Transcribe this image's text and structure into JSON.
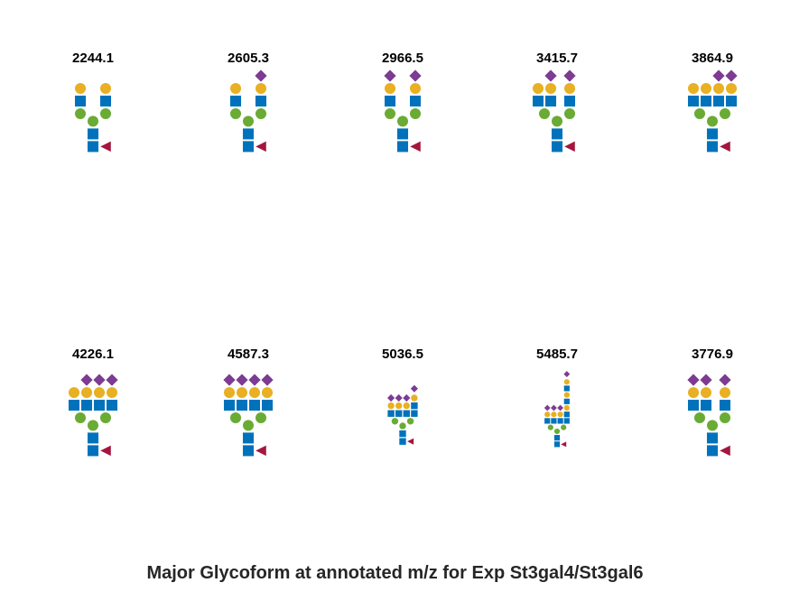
{
  "title": "Major Glycoform at annotated m/z for Exp St3gal4/St3gal6",
  "colors": {
    "glcnac": "#0072bc",
    "mannose": "#6aab34",
    "galactose": "#e8b022",
    "neuac": "#7d3b93",
    "fucose": "#a3163f"
  },
  "glycans": [
    {
      "mz": "2244.1",
      "composition": "biantennary core-fucosylated, 2 Gal"
    },
    {
      "mz": "2605.3",
      "composition": "biantennary core-fucosylated, 2 Gal, 1 NeuAc"
    },
    {
      "mz": "2966.5",
      "composition": "biantennary core-fucosylated, 2 Gal, 2 NeuAc"
    },
    {
      "mz": "3415.7",
      "composition": "triantennary core-fucosylated, 3 Gal, 2 NeuAc"
    },
    {
      "mz": "3864.9",
      "composition": "tetraantennary core-fucosylated, 4 Gal, 2 NeuAc"
    },
    {
      "mz": "4226.1",
      "composition": "tetraantennary core-fucosylated, 4 Gal, 3 NeuAc"
    },
    {
      "mz": "4587.3",
      "composition": "tetraantennary core-fucosylated, 4 Gal, 4 NeuAc"
    },
    {
      "mz": "5036.5",
      "composition": "tetraantennary core-fucosylated, 3 NeuAc, 1 LacNAc extension + NeuAc"
    },
    {
      "mz": "5485.7",
      "composition": "tetraantennary core-fucosylated, 3 NeuAc, 2 LacNAc extensions + NeuAc"
    },
    {
      "mz": "3776.9",
      "composition": "triantennary core-fucosylated, 3 Gal, 3 NeuAc"
    }
  ]
}
